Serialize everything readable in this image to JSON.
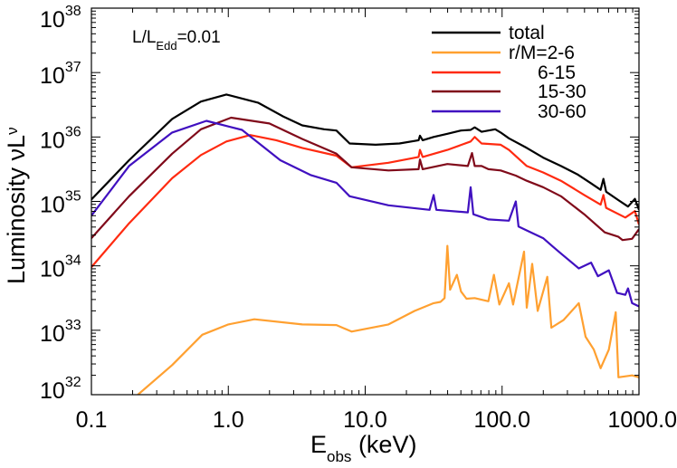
{
  "chart_data": {
    "type": "line",
    "title": "",
    "annotation": {
      "main": "L/L",
      "sub": "Edd",
      "tail": "=0.01"
    },
    "xlabel": {
      "main": "E",
      "sub": "obs",
      "tail": " (keV)"
    },
    "ylabel": {
      "main": "Luminosity νL",
      "sub": "ν"
    },
    "x_scale": "log",
    "y_scale": "log",
    "xlim": [
      0.1,
      1000
    ],
    "ylim": [
      1e+32,
      1e+38
    ],
    "x_ticks": [
      {
        "value": 0.1,
        "label": "0.1"
      },
      {
        "value": 1,
        "label": "1.0"
      },
      {
        "value": 10,
        "label": "10.0"
      },
      {
        "value": 100,
        "label": "100.0"
      },
      {
        "value": 1000,
        "label": "1000.0"
      }
    ],
    "y_ticks": [
      {
        "value": 1e+32,
        "base": "10",
        "exp": "32"
      },
      {
        "value": 1e+33,
        "base": "10",
        "exp": "33"
      },
      {
        "value": 1e+34,
        "base": "10",
        "exp": "34"
      },
      {
        "value": 1e+35,
        "base": "10",
        "exp": "35"
      },
      {
        "value": 1e+36,
        "base": "10",
        "exp": "36"
      },
      {
        "value": 1e+37,
        "base": "10",
        "exp": "37"
      },
      {
        "value": 1e+38,
        "base": "10",
        "exp": "38"
      }
    ],
    "grid": false,
    "legend_position": "top-right",
    "series_units": "points are [log10 E(keV), log10 L]",
    "series": [
      {
        "name": "total",
        "legend_label": "total",
        "color": "#000000",
        "points": [
          [
            -1,
            35.03
          ],
          [
            -0.725,
            35.64
          ],
          [
            -0.41,
            36.28
          ],
          [
            -0.2,
            36.55
          ],
          [
            -0.014,
            36.66
          ],
          [
            0.22,
            36.53
          ],
          [
            0.4,
            36.32
          ],
          [
            0.54,
            36.18
          ],
          [
            0.7,
            36.12
          ],
          [
            0.79,
            36.1
          ],
          [
            0.886,
            35.9
          ],
          [
            1.076,
            35.88
          ],
          [
            1.25,
            35.9
          ],
          [
            1.39,
            35.95
          ],
          [
            1.4,
            36.02
          ],
          [
            1.42,
            35.95
          ],
          [
            1.5,
            36.0
          ],
          [
            1.6,
            36.05
          ],
          [
            1.7,
            36.1
          ],
          [
            1.77,
            36.11
          ],
          [
            1.8,
            36.15
          ],
          [
            1.85,
            36.08
          ],
          [
            1.95,
            36.12
          ],
          [
            1.99,
            36.07
          ],
          [
            2.05,
            35.98
          ],
          [
            2.18,
            35.83
          ],
          [
            2.3,
            35.68
          ],
          [
            2.43,
            35.55
          ],
          [
            2.55,
            35.42
          ],
          [
            2.65,
            35.28
          ],
          [
            2.72,
            35.18
          ],
          [
            2.74,
            35.35
          ],
          [
            2.76,
            35.15
          ],
          [
            2.85,
            35.02
          ],
          [
            2.92,
            34.92
          ],
          [
            2.97,
            35.04
          ],
          [
            3.0,
            34.87
          ]
        ]
      },
      {
        "name": "r/M=2-6",
        "legend_label": "r/M=2-6",
        "color": "#ffa030",
        "points": [
          [
            -0.66,
            32.0
          ],
          [
            -0.41,
            32.46
          ],
          [
            -0.19,
            32.93
          ],
          [
            0,
            33.09
          ],
          [
            0.19,
            33.17
          ],
          [
            0.54,
            33.09
          ],
          [
            0.79,
            33.08
          ],
          [
            0.9,
            32.98
          ],
          [
            1.17,
            33.09
          ],
          [
            1.36,
            33.3
          ],
          [
            1.5,
            33.42
          ],
          [
            1.55,
            33.44
          ],
          [
            1.58,
            33.5
          ],
          [
            1.6,
            34.31
          ],
          [
            1.62,
            33.63
          ],
          [
            1.67,
            33.86
          ],
          [
            1.7,
            33.6
          ],
          [
            1.74,
            33.49
          ],
          [
            1.8,
            33.5
          ],
          [
            1.9,
            33.45
          ],
          [
            1.94,
            33.86
          ],
          [
            1.98,
            33.4
          ],
          [
            2.05,
            33.73
          ],
          [
            2.08,
            33.4
          ],
          [
            2.16,
            34.22
          ],
          [
            2.18,
            33.35
          ],
          [
            2.22,
            34.03
          ],
          [
            2.26,
            33.3
          ],
          [
            2.33,
            33.83
          ],
          [
            2.36,
            33.04
          ],
          [
            2.45,
            33.16
          ],
          [
            2.56,
            33.42
          ],
          [
            2.61,
            32.9
          ],
          [
            2.67,
            32.7
          ],
          [
            2.72,
            32.41
          ],
          [
            2.78,
            32.7
          ],
          [
            2.83,
            33.28
          ],
          [
            2.85,
            32.27
          ],
          [
            2.95,
            32.3
          ],
          [
            3.0,
            32.27
          ]
        ]
      },
      {
        "name": "6-15",
        "legend_label": "6-15",
        "color": "#ff2a10",
        "points": [
          [
            -1,
            33.98
          ],
          [
            -0.725,
            34.66
          ],
          [
            -0.41,
            35.36
          ],
          [
            -0.2,
            35.72
          ],
          [
            -0.014,
            35.93
          ],
          [
            0.16,
            36.03
          ],
          [
            0.35,
            35.95
          ],
          [
            0.54,
            35.83
          ],
          [
            0.79,
            35.71
          ],
          [
            0.9,
            35.53
          ],
          [
            1.17,
            35.6
          ],
          [
            1.39,
            35.69
          ],
          [
            1.4,
            35.8
          ],
          [
            1.42,
            35.69
          ],
          [
            1.6,
            35.8
          ],
          [
            1.77,
            35.93
          ],
          [
            1.8,
            36.0
          ],
          [
            1.85,
            35.9
          ],
          [
            1.99,
            35.88
          ],
          [
            2.05,
            35.8
          ],
          [
            2.18,
            35.55
          ],
          [
            2.3,
            35.45
          ],
          [
            2.43,
            35.32
          ],
          [
            2.6,
            35.1
          ],
          [
            2.72,
            34.95
          ],
          [
            2.74,
            35.1
          ],
          [
            2.76,
            34.9
          ],
          [
            2.9,
            34.75
          ],
          [
            2.97,
            34.85
          ],
          [
            3.0,
            34.64
          ]
        ]
      },
      {
        "name": "15-30",
        "legend_label": "15-30",
        "color": "#800a1a",
        "points": [
          [
            -1,
            34.43
          ],
          [
            -0.725,
            35.08
          ],
          [
            -0.41,
            35.74
          ],
          [
            -0.2,
            36.12
          ],
          [
            0.02,
            36.3
          ],
          [
            0.3,
            36.21
          ],
          [
            0.54,
            35.97
          ],
          [
            0.79,
            35.74
          ],
          [
            0.9,
            35.53
          ],
          [
            1.17,
            35.48
          ],
          [
            1.39,
            35.5
          ],
          [
            1.4,
            35.65
          ],
          [
            1.42,
            35.5
          ],
          [
            1.6,
            35.58
          ],
          [
            1.75,
            35.55
          ],
          [
            1.78,
            35.75
          ],
          [
            1.8,
            35.55
          ],
          [
            1.85,
            35.55
          ],
          [
            1.9,
            35.5
          ],
          [
            1.99,
            35.48
          ],
          [
            2.1,
            35.4
          ],
          [
            2.18,
            35.32
          ],
          [
            2.3,
            35.22
          ],
          [
            2.43,
            35.08
          ],
          [
            2.6,
            34.8
          ],
          [
            2.75,
            34.52
          ],
          [
            2.85,
            34.45
          ],
          [
            2.88,
            34.4
          ],
          [
            2.95,
            34.42
          ],
          [
            3.0,
            34.57
          ]
        ]
      },
      {
        "name": "30-60",
        "legend_label": "30-60",
        "color": "#4010c0",
        "points": [
          [
            -1,
            34.78
          ],
          [
            -0.725,
            35.55
          ],
          [
            -0.41,
            36.07
          ],
          [
            -0.16,
            36.25
          ],
          [
            0.1,
            36.11
          ],
          [
            0.38,
            35.64
          ],
          [
            0.6,
            35.41
          ],
          [
            0.79,
            35.29
          ],
          [
            0.886,
            35.08
          ],
          [
            1.17,
            34.94
          ],
          [
            1.47,
            34.87
          ],
          [
            1.5,
            35.1
          ],
          [
            1.52,
            34.87
          ],
          [
            1.75,
            34.83
          ],
          [
            1.77,
            35.22
          ],
          [
            1.79,
            34.8
          ],
          [
            1.9,
            34.72
          ],
          [
            2.05,
            34.7
          ],
          [
            2.1,
            35.0
          ],
          [
            2.12,
            34.61
          ],
          [
            2.3,
            34.43
          ],
          [
            2.37,
            34.3
          ],
          [
            2.43,
            34.19
          ],
          [
            2.56,
            33.96
          ],
          [
            2.65,
            34.05
          ],
          [
            2.7,
            33.84
          ],
          [
            2.78,
            33.93
          ],
          [
            2.84,
            33.58
          ],
          [
            2.9,
            33.55
          ],
          [
            2.92,
            33.65
          ],
          [
            2.95,
            33.42
          ],
          [
            3.0,
            33.37
          ]
        ]
      }
    ]
  }
}
